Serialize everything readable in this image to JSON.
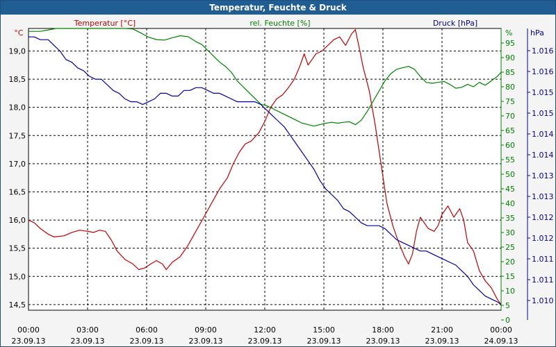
{
  "chart_data": {
    "type": "line",
    "title": "Temperatur, Feuchte & Druck",
    "colors": {
      "temperature": "#c00000",
      "humidity": "#008000",
      "pressure": "#000099",
      "grid": "#000000",
      "titlebar": "#1f5d93"
    },
    "grid": true,
    "x_ticks": [
      {
        "time": "00:00",
        "date": "23.09.13"
      },
      {
        "time": "03:00",
        "date": "23.09.13"
      },
      {
        "time": "06:00",
        "date": "23.09.13"
      },
      {
        "time": "09:00",
        "date": "23.09.13"
      },
      {
        "time": "12:00",
        "date": "23.09.13"
      },
      {
        "time": "15:00",
        "date": "23.09.13"
      },
      {
        "time": "18:00",
        "date": "23.09.13"
      },
      {
        "time": "21:00",
        "date": "23.09.13"
      },
      {
        "time": "00:00",
        "date": "24.09.13"
      }
    ],
    "x_range_hours": [
      0,
      24
    ],
    "axes": {
      "temperature": {
        "label": "Temperatur [°C]",
        "unit": "°C",
        "ylim": [
          14.4,
          19.4
        ],
        "ticks": [
          "14,5",
          "15,0",
          "15,5",
          "16,0",
          "16,5",
          "17,0",
          "17,5",
          "18,0",
          "18,5",
          "19,0"
        ],
        "tick_values": [
          14.5,
          15.0,
          15.5,
          16.0,
          16.5,
          17.0,
          17.5,
          18.0,
          18.5,
          19.0
        ]
      },
      "humidity": {
        "label": "rel. Feuchte [%]",
        "unit": "%",
        "ylim": [
          0,
          100
        ],
        "ticks": [
          "0",
          "5",
          "10",
          "15",
          "20",
          "25",
          "30",
          "35",
          "40",
          "45",
          "50",
          "55",
          "60",
          "65",
          "70",
          "75",
          "80",
          "85",
          "90",
          "95"
        ],
        "tick_values": [
          0,
          5,
          10,
          15,
          20,
          25,
          30,
          35,
          40,
          45,
          50,
          55,
          60,
          65,
          70,
          75,
          80,
          85,
          90,
          95
        ]
      },
      "pressure": {
        "label": "Druck [hPa]",
        "unit": "hPa",
        "ticks": [
          "1.010",
          "1.011",
          "1.011",
          "1.012",
          "1.012",
          "1.013",
          "1.013",
          "1.014",
          "1.014",
          "1.015",
          "1.015",
          "1.016",
          "1.016"
        ]
      }
    },
    "series": [
      {
        "name": "Temperatur [°C]",
        "axis": "temperature",
        "points": [
          [
            0,
            16.0
          ],
          [
            0.3,
            15.95
          ],
          [
            0.6,
            15.85
          ],
          [
            1.0,
            15.75
          ],
          [
            1.3,
            15.7
          ],
          [
            1.8,
            15.72
          ],
          [
            2.2,
            15.78
          ],
          [
            2.6,
            15.82
          ],
          [
            3.0,
            15.8
          ],
          [
            3.3,
            15.78
          ],
          [
            3.6,
            15.82
          ],
          [
            3.9,
            15.8
          ],
          [
            4.2,
            15.65
          ],
          [
            4.5,
            15.45
          ],
          [
            4.9,
            15.3
          ],
          [
            5.3,
            15.22
          ],
          [
            5.6,
            15.12
          ],
          [
            5.9,
            15.15
          ],
          [
            6.2,
            15.22
          ],
          [
            6.5,
            15.28
          ],
          [
            6.8,
            15.22
          ],
          [
            7.0,
            15.12
          ],
          [
            7.3,
            15.25
          ],
          [
            7.7,
            15.35
          ],
          [
            8.1,
            15.55
          ],
          [
            8.5,
            15.8
          ],
          [
            8.9,
            16.05
          ],
          [
            9.3,
            16.3
          ],
          [
            9.7,
            16.55
          ],
          [
            10.1,
            16.75
          ],
          [
            10.4,
            17.0
          ],
          [
            10.7,
            17.2
          ],
          [
            11.0,
            17.35
          ],
          [
            11.3,
            17.4
          ],
          [
            11.7,
            17.55
          ],
          [
            12.0,
            17.75
          ],
          [
            12.3,
            18.0
          ],
          [
            12.6,
            18.15
          ],
          [
            12.9,
            18.22
          ],
          [
            13.2,
            18.35
          ],
          [
            13.5,
            18.5
          ],
          [
            13.8,
            18.75
          ],
          [
            14.0,
            18.95
          ],
          [
            14.2,
            18.75
          ],
          [
            14.4,
            18.85
          ],
          [
            14.6,
            18.95
          ],
          [
            14.9,
            19.0
          ],
          [
            15.2,
            19.1
          ],
          [
            15.5,
            19.2
          ],
          [
            15.8,
            19.25
          ],
          [
            16.1,
            19.1
          ],
          [
            16.4,
            19.3
          ],
          [
            16.6,
            19.38
          ],
          [
            16.8,
            19.05
          ],
          [
            17.0,
            18.7
          ],
          [
            17.3,
            18.3
          ],
          [
            17.6,
            17.7
          ],
          [
            17.9,
            17.0
          ],
          [
            18.2,
            16.3
          ],
          [
            18.5,
            15.9
          ],
          [
            18.8,
            15.6
          ],
          [
            19.1,
            15.35
          ],
          [
            19.3,
            15.22
          ],
          [
            19.5,
            15.4
          ],
          [
            19.7,
            15.8
          ],
          [
            19.9,
            16.05
          ],
          [
            20.1,
            15.95
          ],
          [
            20.3,
            15.85
          ],
          [
            20.6,
            15.8
          ],
          [
            20.8,
            15.9
          ],
          [
            21.0,
            16.1
          ],
          [
            21.3,
            16.25
          ],
          [
            21.6,
            16.05
          ],
          [
            21.9,
            16.2
          ],
          [
            22.1,
            16.0
          ],
          [
            22.3,
            15.6
          ],
          [
            22.6,
            15.45
          ],
          [
            22.9,
            15.1
          ],
          [
            23.2,
            14.92
          ],
          [
            23.5,
            14.8
          ],
          [
            23.8,
            14.6
          ],
          [
            24.0,
            14.5
          ]
        ]
      },
      {
        "name": "rel. Feuchte [%]",
        "axis": "humidity",
        "points": [
          [
            0,
            99
          ],
          [
            0.6,
            99
          ],
          [
            1.0,
            99.5
          ],
          [
            1.4,
            100
          ],
          [
            1.9,
            100.5
          ],
          [
            2.3,
            100.8
          ],
          [
            2.8,
            100.5
          ],
          [
            3.3,
            100.5
          ],
          [
            3.7,
            100.5
          ],
          [
            4.1,
            101
          ],
          [
            4.5,
            101
          ],
          [
            4.9,
            100.5
          ],
          [
            5.3,
            99.8
          ],
          [
            5.7,
            98.5
          ],
          [
            6.1,
            97
          ],
          [
            6.5,
            96.2
          ],
          [
            6.9,
            96
          ],
          [
            7.3,
            96.8
          ],
          [
            7.7,
            97.5
          ],
          [
            8.1,
            97.2
          ],
          [
            8.5,
            95.5
          ],
          [
            8.8,
            94.5
          ],
          [
            9.1,
            92.5
          ],
          [
            9.4,
            90.5
          ],
          [
            9.7,
            88.5
          ],
          [
            10.0,
            87
          ],
          [
            10.3,
            85
          ],
          [
            10.6,
            82
          ],
          [
            10.9,
            80
          ],
          [
            11.2,
            78
          ],
          [
            11.5,
            76
          ],
          [
            11.8,
            74
          ],
          [
            12.1,
            73.5
          ],
          [
            12.4,
            72.5
          ],
          [
            12.7,
            71.5
          ],
          [
            13.0,
            70.5
          ],
          [
            13.3,
            69.5
          ],
          [
            13.6,
            68.5
          ],
          [
            13.9,
            67.5
          ],
          [
            14.2,
            67
          ],
          [
            14.5,
            66.5
          ],
          [
            14.8,
            67
          ],
          [
            15.1,
            67.5
          ],
          [
            15.4,
            67.8
          ],
          [
            15.7,
            67.5
          ],
          [
            16.0,
            67.8
          ],
          [
            16.3,
            68
          ],
          [
            16.6,
            67
          ],
          [
            16.9,
            68.5
          ],
          [
            17.2,
            71.5
          ],
          [
            17.5,
            75
          ],
          [
            17.8,
            78.5
          ],
          [
            18.1,
            82
          ],
          [
            18.4,
            84.5
          ],
          [
            18.7,
            86
          ],
          [
            19.0,
            86.5
          ],
          [
            19.3,
            87
          ],
          [
            19.6,
            86
          ],
          [
            19.9,
            83.5
          ],
          [
            20.2,
            81.5
          ],
          [
            20.5,
            81.2
          ],
          [
            20.8,
            81.5
          ],
          [
            21.1,
            81.8
          ],
          [
            21.4,
            80.8
          ],
          [
            21.7,
            79.5
          ],
          [
            22.0,
            79.8
          ],
          [
            22.3,
            80.8
          ],
          [
            22.6,
            80
          ],
          [
            22.9,
            81.5
          ],
          [
            23.2,
            80.5
          ],
          [
            23.5,
            82
          ],
          [
            23.8,
            83.5
          ],
          [
            24.0,
            85
          ]
        ]
      },
      {
        "name": "Druck [hPa]",
        "axis": "pressure",
        "points": [
          [
            0,
            0.97
          ],
          [
            0.3,
            0.97
          ],
          [
            0.6,
            0.96
          ],
          [
            1.0,
            0.96
          ],
          [
            1.3,
            0.94
          ],
          [
            1.6,
            0.92
          ],
          [
            1.9,
            0.89
          ],
          [
            2.2,
            0.88
          ],
          [
            2.5,
            0.86
          ],
          [
            2.8,
            0.85
          ],
          [
            3.1,
            0.83
          ],
          [
            3.4,
            0.82
          ],
          [
            3.7,
            0.82
          ],
          [
            4.0,
            0.8
          ],
          [
            4.3,
            0.78
          ],
          [
            4.6,
            0.77
          ],
          [
            4.9,
            0.75
          ],
          [
            5.2,
            0.74
          ],
          [
            5.5,
            0.74
          ],
          [
            5.8,
            0.73
          ],
          [
            6.1,
            0.74
          ],
          [
            6.4,
            0.75
          ],
          [
            6.7,
            0.77
          ],
          [
            7.0,
            0.77
          ],
          [
            7.3,
            0.76
          ],
          [
            7.6,
            0.76
          ],
          [
            7.9,
            0.78
          ],
          [
            8.2,
            0.78
          ],
          [
            8.5,
            0.79
          ],
          [
            8.8,
            0.79
          ],
          [
            9.1,
            0.78
          ],
          [
            9.4,
            0.77
          ],
          [
            9.7,
            0.77
          ],
          [
            10.0,
            0.76
          ],
          [
            10.3,
            0.75
          ],
          [
            10.6,
            0.74
          ],
          [
            10.9,
            0.74
          ],
          [
            11.2,
            0.74
          ],
          [
            11.5,
            0.74
          ],
          [
            11.8,
            0.73
          ],
          [
            12.1,
            0.71
          ],
          [
            12.4,
            0.69
          ],
          [
            12.7,
            0.67
          ],
          [
            13.0,
            0.65
          ],
          [
            13.3,
            0.62
          ],
          [
            13.6,
            0.59
          ],
          [
            13.9,
            0.56
          ],
          [
            14.2,
            0.53
          ],
          [
            14.5,
            0.5
          ],
          [
            14.8,
            0.46
          ],
          [
            15.1,
            0.43
          ],
          [
            15.4,
            0.41
          ],
          [
            15.7,
            0.39
          ],
          [
            16.0,
            0.36
          ],
          [
            16.3,
            0.35
          ],
          [
            16.6,
            0.33
          ],
          [
            16.9,
            0.31
          ],
          [
            17.2,
            0.3
          ],
          [
            17.5,
            0.3
          ],
          [
            17.8,
            0.3
          ],
          [
            18.1,
            0.29
          ],
          [
            18.4,
            0.27
          ],
          [
            18.7,
            0.25
          ],
          [
            19.0,
            0.24
          ],
          [
            19.3,
            0.23
          ],
          [
            19.6,
            0.22
          ],
          [
            19.9,
            0.21
          ],
          [
            20.2,
            0.21
          ],
          [
            20.5,
            0.2
          ],
          [
            20.8,
            0.19
          ],
          [
            21.1,
            0.18
          ],
          [
            21.4,
            0.17
          ],
          [
            21.7,
            0.16
          ],
          [
            22.0,
            0.14
          ],
          [
            22.3,
            0.12
          ],
          [
            22.6,
            0.09
          ],
          [
            22.9,
            0.07
          ],
          [
            23.2,
            0.05
          ],
          [
            23.5,
            0.04
          ],
          [
            23.8,
            0.03
          ],
          [
            24.0,
            0.02
          ]
        ]
      }
    ]
  }
}
